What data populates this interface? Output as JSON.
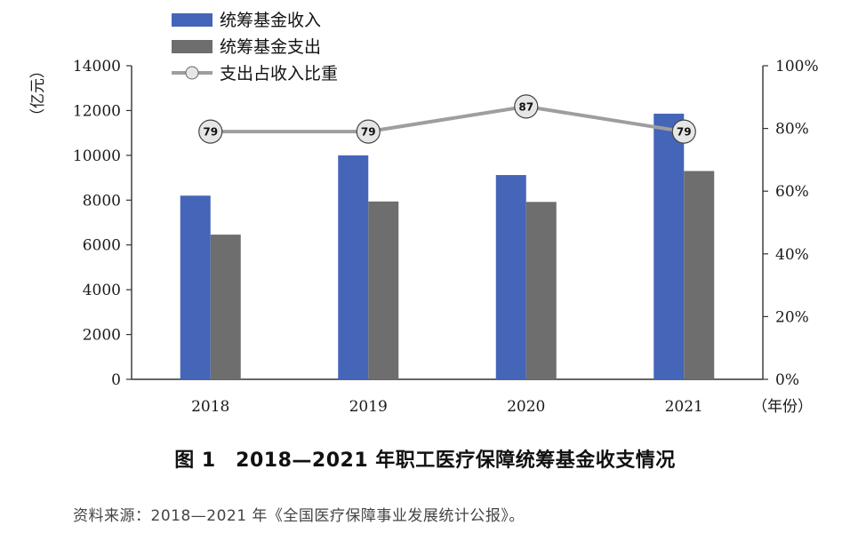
{
  "chart_data": {
    "type": "bar",
    "categories": [
      "2018",
      "2019",
      "2020",
      "2021"
    ],
    "series": [
      {
        "name": "统筹基金收入",
        "type": "bar",
        "axis": "left",
        "color": "#4565B8",
        "values": [
          8200,
          10000,
          9120,
          11860
        ]
      },
      {
        "name": "统筹基金支出",
        "type": "bar",
        "axis": "left",
        "color": "#6E6E6E",
        "values": [
          6460,
          7940,
          7920,
          9300
        ]
      },
      {
        "name": "支出占收入比重",
        "type": "line",
        "axis": "right",
        "color": "#9E9E9E",
        "values": [
          79,
          79,
          87,
          79
        ],
        "data_labels": [
          "79",
          "79",
          "87",
          "79"
        ]
      }
    ],
    "ylabel_left": "（亿元）",
    "xlabel": "（年份）",
    "ylim_left": [
      0,
      14000
    ],
    "yticks_left": [
      "0",
      "2000",
      "4000",
      "6000",
      "8000",
      "10000",
      "12000",
      "14000"
    ],
    "ylim_right": [
      0,
      100
    ],
    "yticks_right": [
      "0%",
      "20%",
      "40%",
      "60%",
      "80%",
      "100%"
    ],
    "legend_position": "top-left",
    "grid": false
  },
  "caption": "图 1　2018—2021 年职工医疗保障统筹基金收支情况",
  "source": "资料来源：2018—2021 年《全国医疗保障事业发展统计公报》。"
}
